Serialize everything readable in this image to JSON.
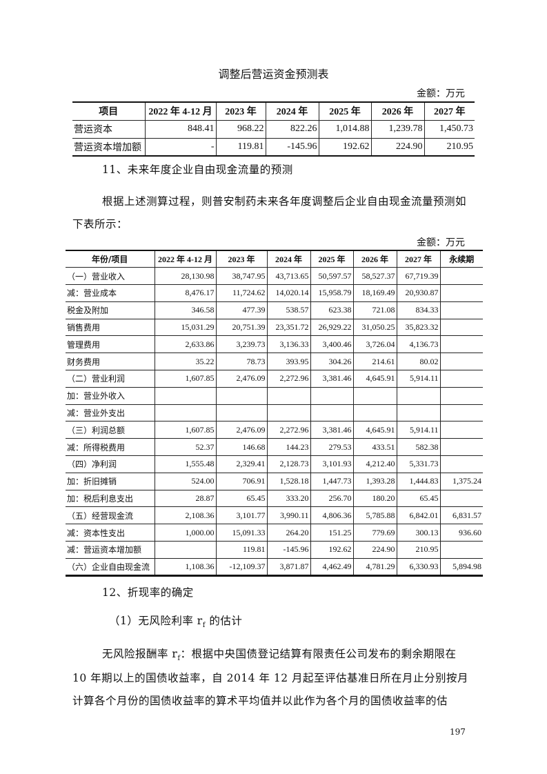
{
  "table1": {
    "title": "调整后营运资金预测表",
    "unit": "金额：万元",
    "headers": [
      "项目",
      "2022 年 4-12 月",
      "2023 年",
      "2024 年",
      "2025 年",
      "2026 年",
      "2027 年"
    ],
    "rows": [
      [
        "营运资本",
        "848.41",
        "968.22",
        "822.26",
        "1,014.88",
        "1,239.78",
        "1,450.73"
      ],
      [
        "营运资本增加额",
        "-",
        "119.81",
        "-145.96",
        "192.62",
        "224.90",
        "210.95"
      ]
    ]
  },
  "section11": "11、未来年度企业自由现金流量的预测",
  "para1_line1": "根据上述测算过程，则普安制药未来各年度调整后企业自由现金流量预测如",
  "para1_line2": "下表所示：",
  "table2": {
    "unit": "金额：万元",
    "headers": [
      "年份/项目",
      "2022 年 4-12 月",
      "2023 年",
      "2024 年",
      "2025 年",
      "2026 年",
      "2027 年",
      "永续期"
    ],
    "rows": [
      [
        "（一）营业收入",
        "28,130.98",
        "38,747.95",
        "43,713.65",
        "50,597.57",
        "58,527.37",
        "67,719.39",
        ""
      ],
      [
        "减：营业成本",
        "8,476.17",
        "11,724.62",
        "14,020.14",
        "15,958.79",
        "18,169.49",
        "20,930.87",
        ""
      ],
      [
        "税金及附加",
        "346.58",
        "477.39",
        "538.57",
        "623.38",
        "721.08",
        "834.33",
        ""
      ],
      [
        "销售费用",
        "15,031.29",
        "20,751.39",
        "23,351.72",
        "26,929.22",
        "31,050.25",
        "35,823.32",
        ""
      ],
      [
        "管理费用",
        "2,633.86",
        "3,239.73",
        "3,136.33",
        "3,400.46",
        "3,726.04",
        "4,136.73",
        ""
      ],
      [
        "财务费用",
        "35.22",
        "78.73",
        "393.95",
        "304.26",
        "214.61",
        "80.02",
        ""
      ],
      [
        "（二）营业利润",
        "1,607.85",
        "2,476.09",
        "2,272.96",
        "3,381.46",
        "4,645.91",
        "5,914.11",
        ""
      ],
      [
        "加：营业外收入",
        "",
        "",
        "",
        "",
        "",
        "",
        ""
      ],
      [
        "减：营业外支出",
        "",
        "",
        "",
        "",
        "",
        "",
        ""
      ],
      [
        "（三）利润总额",
        "1,607.85",
        "2,476.09",
        "2,272.96",
        "3,381.46",
        "4,645.91",
        "5,914.11",
        ""
      ],
      [
        "减：所得税费用",
        "52.37",
        "146.68",
        "144.23",
        "279.53",
        "433.51",
        "582.38",
        ""
      ],
      [
        "（四）净利润",
        "1,555.48",
        "2,329.41",
        "2,128.73",
        "3,101.93",
        "4,212.40",
        "5,331.73",
        ""
      ],
      [
        "加：折旧摊销",
        "524.00",
        "706.91",
        "1,528.18",
        "1,447.73",
        "1,393.28",
        "1,444.83",
        "1,375.24"
      ],
      [
        "加：税后利息支出",
        "28.87",
        "65.45",
        "333.20",
        "256.70",
        "180.20",
        "65.45",
        ""
      ],
      [
        "（五）经营现金流",
        "2,108.36",
        "3,101.77",
        "3,990.11",
        "4,806.36",
        "5,785.88",
        "6,842.01",
        "6,831.57"
      ],
      [
        "减：资本性支出",
        "1,000.00",
        "15,091.33",
        "264.20",
        "151.25",
        "779.69",
        "300.13",
        "936.60"
      ],
      [
        "减：营运资本增加额",
        "",
        "119.81",
        "-145.96",
        "192.62",
        "224.90",
        "210.95",
        ""
      ],
      [
        "（六）企业自由现金流",
        "1,108.36",
        "-12,109.37",
        "3,871.87",
        "4,462.49",
        "4,781.29",
        "6,330.93",
        "5,894.98"
      ]
    ]
  },
  "section12": "12、折现率的确定",
  "sub1_pre": "（1）无风险利率 r",
  "sub1_sub": "f",
  "sub1_post": " 的估计",
  "p2_pre": "无风险报酬率 r",
  "p2_sub": "f",
  "p2_post": "：根据中央国债登记结算有限责任公司发布的剩余期限在",
  "p2_line2": "10 年期以上的国债收益率，自 2014 年 12 月起至评估基准日所在月止分别按月",
  "p2_line3": "计算各个月份的国债收益率的算术平均值并以此作为各个月的国债收益率的估",
  "page_number": "197"
}
